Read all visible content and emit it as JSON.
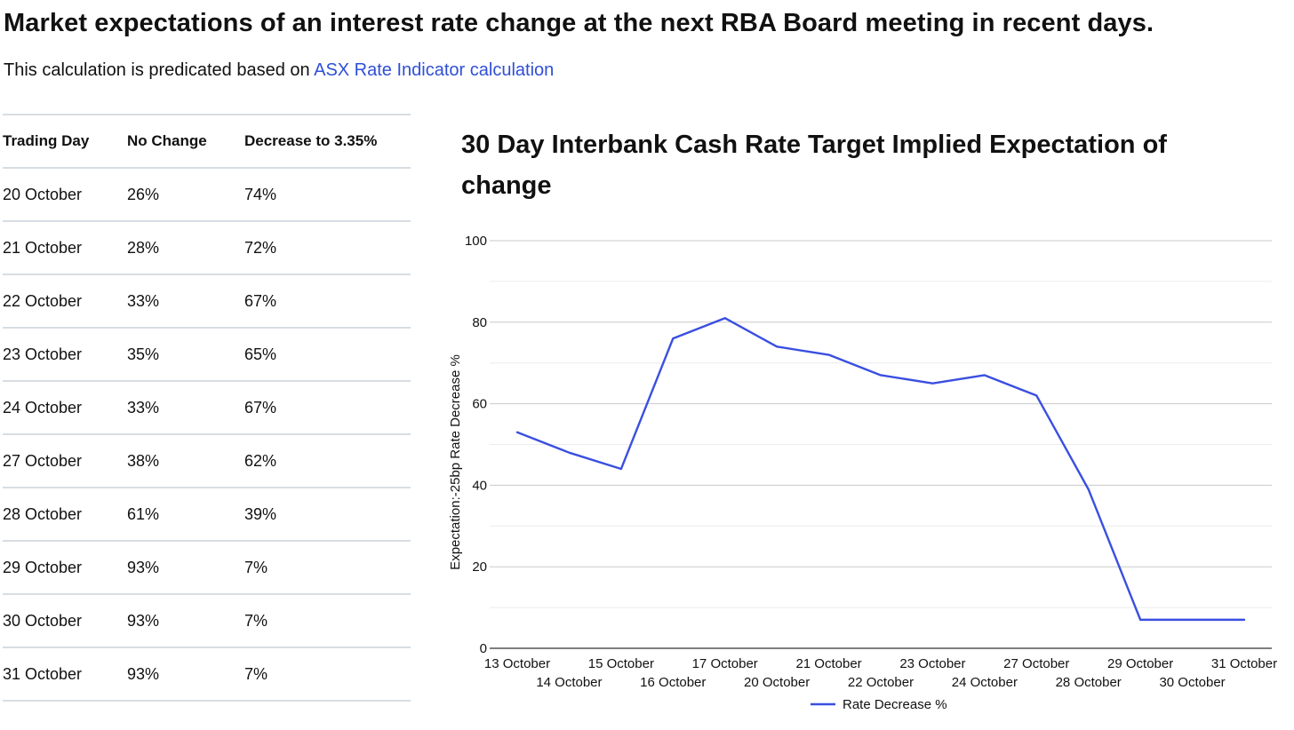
{
  "heading": "Market expectations of an interest rate change at the next RBA Board meeting in recent days.",
  "subline": {
    "text": "This calculation is predicated based on ",
    "link": "ASX Rate Indicator calculation",
    "link_color": "#2f4fd6"
  },
  "table": {
    "headers": [
      "Trading Day",
      "No Change",
      "Decrease to 3.35%"
    ],
    "rows": [
      [
        "20 October",
        "26%",
        "74%"
      ],
      [
        "21 October",
        "28%",
        "72%"
      ],
      [
        "22 October",
        "33%",
        "67%"
      ],
      [
        "23 October",
        "35%",
        "65%"
      ],
      [
        "24 October",
        "33%",
        "67%"
      ],
      [
        "27 October",
        "38%",
        "62%"
      ],
      [
        "28 October",
        "61%",
        "39%"
      ],
      [
        "29 October",
        "93%",
        "7%"
      ],
      [
        "30 October",
        "93%",
        "7%"
      ],
      [
        "31 October",
        "93%",
        "7%"
      ]
    ]
  },
  "chart_data": {
    "type": "line",
    "title": "30 Day Interbank Cash Rate Target Implied Expectation of change",
    "xlabel": "",
    "ylabel": "Expectation:-25bp Rate Decrease %",
    "ylim": [
      0,
      100
    ],
    "yticks": [
      0,
      20,
      40,
      60,
      80,
      100
    ],
    "grid": true,
    "legend_position": "bottom",
    "categories": [
      "13 October",
      "14 October",
      "15 October",
      "16 October",
      "17 October",
      "20 October",
      "21 October",
      "22 October",
      "23 October",
      "24 October",
      "27 October",
      "28 October",
      "29 October",
      "30 October",
      "31 October"
    ],
    "series": [
      {
        "name": "Rate Decrease %",
        "color": "#3a4fe0",
        "values": [
          53,
          48,
          44,
          76,
          81,
          74,
          72,
          67,
          65,
          67,
          62,
          39,
          7,
          7,
          7
        ]
      }
    ]
  }
}
